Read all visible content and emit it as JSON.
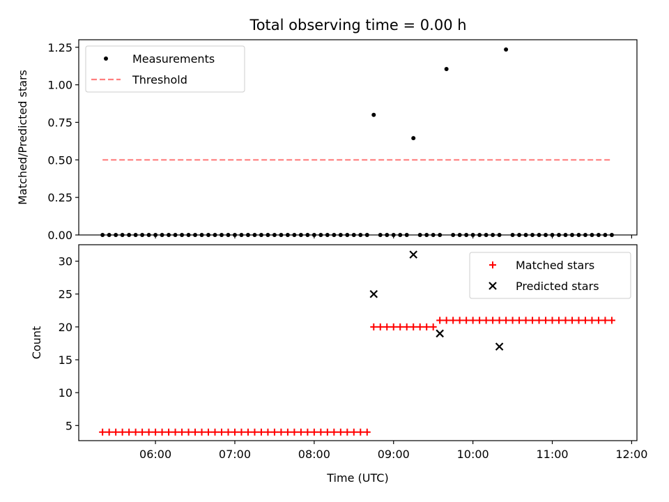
{
  "figure": {
    "title": "Total observing time = 0.00 h"
  },
  "chart_data": [
    {
      "type": "scatter",
      "ylabel": "Matched/Predicted stars",
      "xlabel": "",
      "ylim": [
        0,
        1.3
      ],
      "xlim": [
        "05:02",
        "12:04"
      ],
      "x_ticks": [
        "06:00",
        "07:00",
        "08:00",
        "09:00",
        "10:00",
        "11:00",
        "12:00"
      ],
      "y_ticks": [
        "0.00",
        "0.25",
        "0.50",
        "0.75",
        "1.00",
        "1.25"
      ],
      "legend_position": "top-left",
      "grid": false,
      "series": [
        {
          "name": "Measurements",
          "style": "dot",
          "color": "#000000",
          "x": [
            "05:20",
            "05:25",
            "05:30",
            "05:35",
            "05:40",
            "05:45",
            "05:50",
            "05:55",
            "06:00",
            "06:05",
            "06:10",
            "06:15",
            "06:20",
            "06:25",
            "06:30",
            "06:35",
            "06:40",
            "06:45",
            "06:50",
            "06:55",
            "07:00",
            "07:05",
            "07:10",
            "07:15",
            "07:20",
            "07:25",
            "07:30",
            "07:35",
            "07:40",
            "07:45",
            "07:50",
            "07:55",
            "08:00",
            "08:05",
            "08:10",
            "08:15",
            "08:20",
            "08:25",
            "08:30",
            "08:35",
            "08:40",
            "08:45",
            "08:50",
            "08:55",
            "09:00",
            "09:05",
            "09:10",
            "09:15",
            "09:20",
            "09:25",
            "09:30",
            "09:35",
            "09:40",
            "09:45",
            "09:50",
            "09:55",
            "10:00",
            "10:05",
            "10:10",
            "10:15",
            "10:20",
            "10:25",
            "10:30",
            "10:35",
            "10:40",
            "10:45",
            "10:50",
            "10:55",
            "11:00",
            "11:05",
            "11:10",
            "11:15",
            "11:20",
            "11:25",
            "11:30",
            "11:35",
            "11:40",
            "11:45"
          ],
          "y": [
            0,
            0,
            0,
            0,
            0,
            0,
            0,
            0,
            0,
            0,
            0,
            0,
            0,
            0,
            0,
            0,
            0,
            0,
            0,
            0,
            0,
            0,
            0,
            0,
            0,
            0,
            0,
            0,
            0,
            0,
            0,
            0,
            0,
            0,
            0,
            0,
            0,
            0,
            0,
            0,
            0,
            0.8,
            0,
            0,
            0,
            0,
            0,
            0.645,
            0,
            0,
            0,
            0,
            1.105,
            0,
            0,
            0,
            0,
            0,
            0,
            0,
            0,
            1.235,
            0,
            0,
            0,
            0,
            0,
            0,
            0,
            0,
            0,
            0,
            0,
            0,
            0,
            0,
            0,
            0
          ]
        },
        {
          "name": "Threshold",
          "style": "dashed-line",
          "color": "#ff7f7f",
          "x": [
            "05:20",
            "11:45"
          ],
          "y": [
            0.5,
            0.5
          ]
        }
      ]
    },
    {
      "type": "scatter",
      "ylabel": "Count",
      "xlabel": "Time (UTC)",
      "ylim": [
        2.7,
        32.5
      ],
      "xlim": [
        "05:02",
        "12:04"
      ],
      "x_ticks": [
        "06:00",
        "07:00",
        "08:00",
        "09:00",
        "10:00",
        "11:00",
        "12:00"
      ],
      "y_ticks": [
        "5",
        "10",
        "15",
        "20",
        "25",
        "30"
      ],
      "legend_position": "top-right",
      "grid": false,
      "series": [
        {
          "name": "Matched stars",
          "style": "plus",
          "color": "#ff0000",
          "x": [
            "05:20",
            "05:25",
            "05:30",
            "05:35",
            "05:40",
            "05:45",
            "05:50",
            "05:55",
            "06:00",
            "06:05",
            "06:10",
            "06:15",
            "06:20",
            "06:25",
            "06:30",
            "06:35",
            "06:40",
            "06:45",
            "06:50",
            "06:55",
            "07:00",
            "07:05",
            "07:10",
            "07:15",
            "07:20",
            "07:25",
            "07:30",
            "07:35",
            "07:40",
            "07:45",
            "07:50",
            "07:55",
            "08:00",
            "08:05",
            "08:10",
            "08:15",
            "08:20",
            "08:25",
            "08:30",
            "08:35",
            "08:40",
            "08:45",
            "08:50",
            "08:55",
            "09:00",
            "09:05",
            "09:10",
            "09:15",
            "09:20",
            "09:25",
            "09:30",
            "09:35",
            "09:40",
            "09:45",
            "09:50",
            "09:55",
            "10:00",
            "10:05",
            "10:10",
            "10:15",
            "10:20",
            "10:25",
            "10:30",
            "10:35",
            "10:40",
            "10:45",
            "10:50",
            "10:55",
            "11:00",
            "11:05",
            "11:10",
            "11:15",
            "11:20",
            "11:25",
            "11:30",
            "11:35",
            "11:40",
            "11:45"
          ],
          "y": [
            4,
            4,
            4,
            4,
            4,
            4,
            4,
            4,
            4,
            4,
            4,
            4,
            4,
            4,
            4,
            4,
            4,
            4,
            4,
            4,
            4,
            4,
            4,
            4,
            4,
            4,
            4,
            4,
            4,
            4,
            4,
            4,
            4,
            4,
            4,
            4,
            4,
            4,
            4,
            4,
            4,
            20,
            20,
            20,
            20,
            20,
            20,
            20,
            20,
            20,
            20,
            21,
            21,
            21,
            21,
            21,
            21,
            21,
            21,
            21,
            21,
            21,
            21,
            21,
            21,
            21,
            21,
            21,
            21,
            21,
            21,
            21,
            21,
            21,
            21,
            21,
            21,
            21
          ]
        },
        {
          "name": "Predicted stars",
          "style": "x",
          "color": "#000000",
          "x": [
            "08:45",
            "09:15",
            "09:35",
            "10:20"
          ],
          "y": [
            25,
            31,
            19,
            17
          ]
        }
      ]
    }
  ]
}
